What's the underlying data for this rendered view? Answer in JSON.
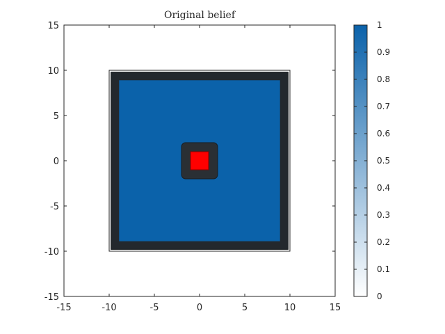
{
  "chart_data": {
    "type": "heatmap",
    "title": "Original belief",
    "xlabel": "",
    "ylabel": "",
    "xlim": [
      -15,
      15
    ],
    "ylim": [
      -15,
      15
    ],
    "xticks": [
      "-15",
      "-10",
      "-5",
      "0",
      "5",
      "10",
      "15"
    ],
    "yticks": [
      "15",
      "10",
      "5",
      "0",
      "-5",
      "-10",
      "-15"
    ],
    "grid": false,
    "colorbar": {
      "placement": "right",
      "range": [
        0,
        1
      ],
      "ticks": [
        "1",
        "0.9",
        "0.8",
        "0.7",
        "0.6",
        "0.5",
        "0.4",
        "0.3",
        "0.2",
        "0.1",
        "0"
      ],
      "color_low": "#ffffff",
      "color_high": "#0b62aa"
    },
    "regions": [
      {
        "name": "domain-boundary",
        "x": [
          -10,
          10
        ],
        "y": [
          -10,
          10
        ],
        "color": "#ffffff"
      },
      {
        "name": "outer-band",
        "x": [
          -9.8,
          9.8
        ],
        "y": [
          -9.8,
          9.8
        ],
        "color": "#23282d"
      },
      {
        "name": "belief-interior",
        "x": [
          -8.9,
          8.9
        ],
        "y": [
          -8.9,
          8.9
        ],
        "color": "#0b62aa",
        "value": 1
      },
      {
        "name": "inner-ring",
        "x": [
          -2,
          2
        ],
        "y": [
          -2,
          2
        ],
        "color": "#2a2f34"
      },
      {
        "name": "target-square",
        "x": [
          -1,
          1
        ],
        "y": [
          -1,
          1
        ],
        "color": "#ff0000"
      }
    ]
  }
}
